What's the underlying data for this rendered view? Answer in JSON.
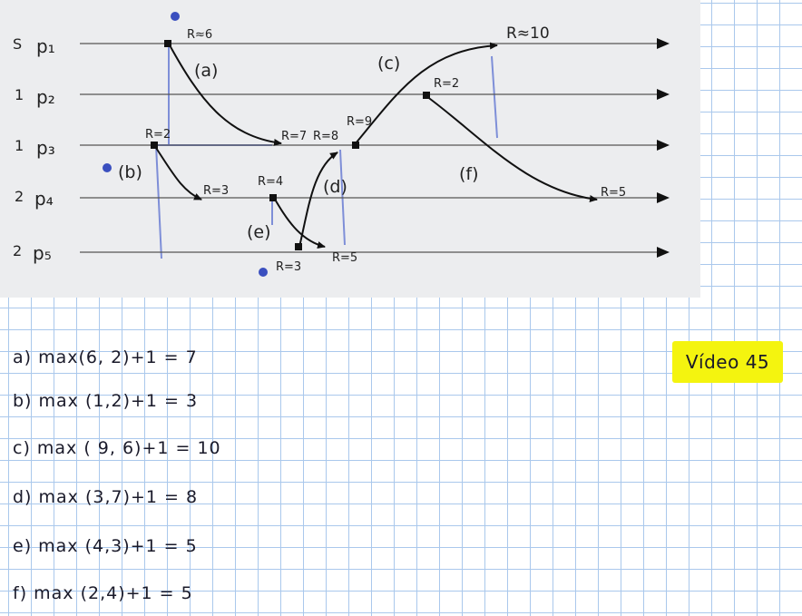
{
  "diagram": {
    "processes": [
      {
        "id": "p1",
        "prefix": "S",
        "label": "p₁"
      },
      {
        "id": "p2",
        "prefix": "1",
        "label": "p₂"
      },
      {
        "id": "p3",
        "prefix": "1",
        "label": "p₃"
      },
      {
        "id": "p4",
        "prefix": "2",
        "label": "p₄"
      },
      {
        "id": "p5",
        "prefix": "2",
        "label": "p₅"
      }
    ],
    "message_labels": [
      "(a)",
      "(b)",
      "(c)",
      "(d)",
      "(e)",
      "(f)"
    ],
    "clock_values": {
      "p1_send": "R≈6",
      "p1_recv": "R≈10",
      "p2_send": "R=2",
      "p3_send": "R=2",
      "p3_recv_a": "R=7",
      "p3_recv_d": "R=8",
      "p3_send_c": "R=9",
      "p4_recv_b": "R=3",
      "p4_send_e": "R=4",
      "p4_recv_f": "R=5",
      "p5_send_d": "R=3",
      "p5_recv_e": "R=5"
    }
  },
  "answers": [
    "a) max(6, 2)+1 = 7",
    "b) max (1,2)+1 = 3",
    "c) max ( 9, 6)+1 = 10",
    "d) max (3,7)+1 = 8",
    "e) max (4,3)+1 = 5",
    "f) max (2,4)+1 = 5"
  ],
  "note": "Vídeo 45",
  "colors": {
    "ink": "#1a1a2a",
    "pencil": "#5a6fd0",
    "highlight": "#f4f40f",
    "grid": "#aac8ec"
  }
}
